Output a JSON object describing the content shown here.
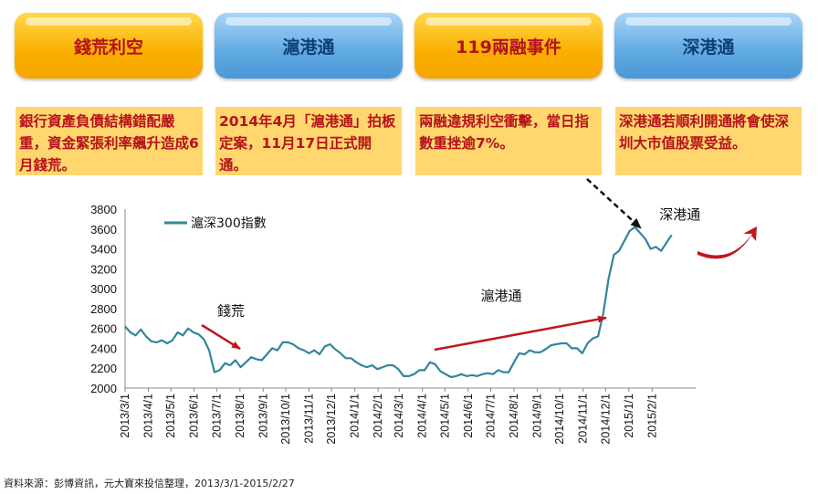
{
  "header": {
    "pills": [
      {
        "label": "錢荒利空",
        "style": "orange"
      },
      {
        "label": "滬港通",
        "style": "blue"
      },
      {
        "label": "119兩融事件",
        "style": "orange"
      },
      {
        "label": "深港通",
        "style": "blue"
      }
    ],
    "descriptions": [
      "銀行資產負債結構錯配嚴重，資金緊張利率飆升造成6月錢荒。",
      "2014年4月「滬港通」拍板定案，11月17日正式開通。",
      "兩融違規利空衝擊，當日指數重挫逾7%。",
      "深港通若順利開通將會使深圳大市值股票受益。"
    ]
  },
  "colors": {
    "line": "#31869b",
    "arrow_red": "#c0171d",
    "pill_orange": "#f9b000",
    "pill_blue": "#5fa9e2",
    "desc_bg": "#ffd76e"
  },
  "chart_data": {
    "type": "line",
    "series": [
      {
        "name": "滬深300指數",
        "x": [
          "2013/3/1",
          "2013/3/8",
          "2013/3/15",
          "2013/3/22",
          "2013/3/29",
          "2013/4/5",
          "2013/4/12",
          "2013/4/19",
          "2013/4/26",
          "2013/5/3",
          "2013/5/10",
          "2013/5/17",
          "2013/5/24",
          "2013/5/31",
          "2013/6/7",
          "2013/6/14",
          "2013/6/21",
          "2013/6/28",
          "2013/7/5",
          "2013/7/12",
          "2013/7/19",
          "2013/7/26",
          "2013/8/2",
          "2013/8/9",
          "2013/8/16",
          "2013/8/23",
          "2013/8/30",
          "2013/9/6",
          "2013/9/13",
          "2013/9/20",
          "2013/9/27",
          "2013/10/4",
          "2013/10/11",
          "2013/10/18",
          "2013/10/25",
          "2013/11/1",
          "2013/11/8",
          "2013/11/15",
          "2013/11/22",
          "2013/11/29",
          "2013/12/6",
          "2013/12/13",
          "2013/12/20",
          "2013/12/27",
          "2014/1/3",
          "2014/1/10",
          "2014/1/17",
          "2014/1/24",
          "2014/1/31",
          "2014/2/7",
          "2014/2/14",
          "2014/2/21",
          "2014/2/28",
          "2014/3/7",
          "2014/3/14",
          "2014/3/21",
          "2014/3/28",
          "2014/4/4",
          "2014/4/11",
          "2014/4/18",
          "2014/4/25",
          "2014/5/2",
          "2014/5/9",
          "2014/5/16",
          "2014/5/23",
          "2014/5/30",
          "2014/6/6",
          "2014/6/13",
          "2014/6/20",
          "2014/6/27",
          "2014/7/4",
          "2014/7/11",
          "2014/7/18",
          "2014/7/25",
          "2014/8/1",
          "2014/8/8",
          "2014/8/15",
          "2014/8/22",
          "2014/8/29",
          "2014/9/5",
          "2014/9/12",
          "2014/9/19",
          "2014/9/26",
          "2014/10/3",
          "2014/10/10",
          "2014/10/17",
          "2014/10/24",
          "2014/10/31",
          "2014/11/7",
          "2014/11/14",
          "2014/11/21",
          "2014/11/28",
          "2014/12/5",
          "2014/12/12",
          "2014/12/19",
          "2014/12/26",
          "2015/1/2",
          "2015/1/9",
          "2015/1/16",
          "2015/1/23",
          "2015/1/30",
          "2015/2/6",
          "2015/2/13",
          "2015/2/20",
          "2015/2/27"
        ],
        "values": [
          2620,
          2560,
          2530,
          2590,
          2520,
          2470,
          2460,
          2480,
          2450,
          2480,
          2560,
          2530,
          2600,
          2560,
          2540,
          2490,
          2380,
          2160,
          2180,
          2250,
          2230,
          2280,
          2210,
          2260,
          2310,
          2290,
          2280,
          2340,
          2400,
          2380,
          2460,
          2460,
          2440,
          2400,
          2380,
          2350,
          2380,
          2340,
          2420,
          2440,
          2390,
          2350,
          2300,
          2300,
          2260,
          2230,
          2210,
          2230,
          2190,
          2210,
          2230,
          2230,
          2190,
          2120,
          2120,
          2140,
          2180,
          2180,
          2260,
          2240,
          2170,
          2140,
          2110,
          2120,
          2140,
          2120,
          2130,
          2120,
          2140,
          2150,
          2140,
          2180,
          2160,
          2160,
          2260,
          2350,
          2340,
          2380,
          2360,
          2360,
          2390,
          2430,
          2440,
          2450,
          2450,
          2400,
          2400,
          2350,
          2450,
          2500,
          2520,
          2750,
          3100,
          3340,
          3380,
          3480,
          3580,
          3620,
          3560,
          3500,
          3400,
          3420,
          3380,
          3460,
          3540
        ]
      }
    ],
    "xticks": [
      "2013/3/1",
      "2013/4/1",
      "2013/5/1",
      "2013/6/1",
      "2013/7/1",
      "2013/8/1",
      "2013/9/1",
      "2013/10/1",
      "2013/11/1",
      "2013/12/1",
      "2014/1/1",
      "2014/2/1",
      "2014/3/1",
      "2014/4/1",
      "2014/5/1",
      "2014/6/1",
      "2014/7/1",
      "2014/8/1",
      "2014/9/1",
      "2014/10/1",
      "2014/11/1",
      "2014/12/1",
      "2015/1/1",
      "2015/2/1"
    ],
    "yticks": [
      2000,
      2200,
      2400,
      2600,
      2800,
      3000,
      3200,
      3400,
      3600,
      3800
    ],
    "ylim": [
      2000,
      3800
    ],
    "xlim": [
      "2013/3/1",
      "2015/3/31"
    ],
    "legend": "top-left",
    "grid": false,
    "annotations": [
      {
        "text": "錢荒",
        "date": "2013/7/20",
        "value": 2730
      },
      {
        "text": "滬港通",
        "date": "2014/7/15",
        "value": 2880
      },
      {
        "text": "深港通",
        "date": "2015/3/10",
        "value": 3700
      }
    ]
  },
  "footer": {
    "source": "資料來源：彭博資訊，元大寶來投信整理，2013/3/1-2015/2/27"
  }
}
